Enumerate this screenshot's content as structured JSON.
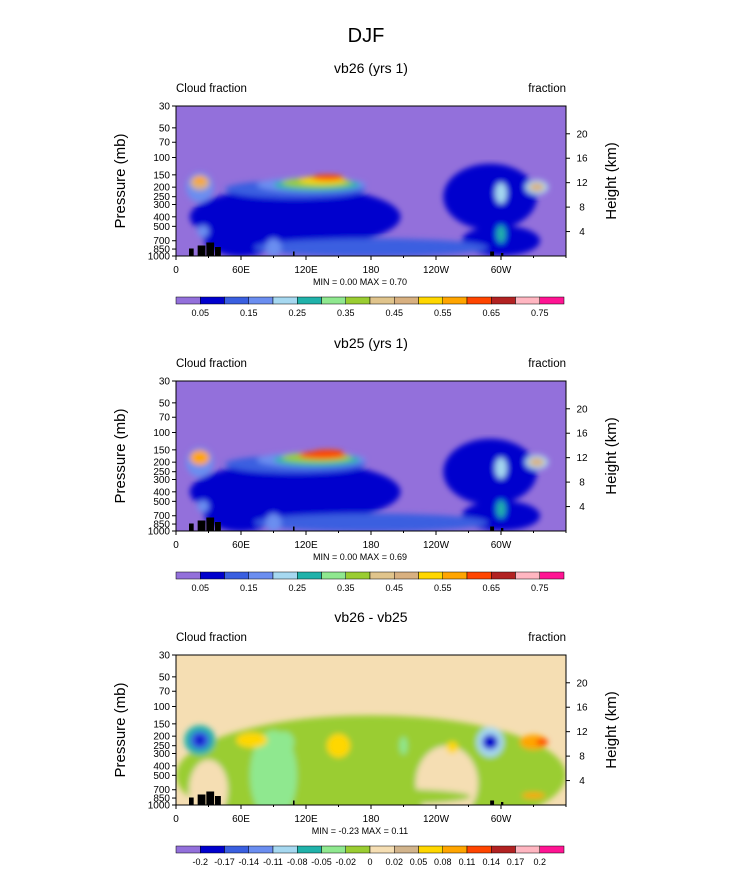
{
  "figure": {
    "title": "DJF"
  },
  "chart_data": [
    {
      "type": "heatmap",
      "title": "vb26 (yrs 1)",
      "left_label": "Cloud fraction",
      "right_label": "fraction",
      "ylabel": "Pressure (mb)",
      "y2label": "Height (km)",
      "x_ticks": [
        "0",
        "60E",
        "120E",
        "180",
        "120W",
        "60W"
      ],
      "y_ticks": [
        "30",
        "50",
        "70",
        "100",
        "150",
        "200",
        "250",
        "300",
        "400",
        "500",
        "700",
        "850",
        "1000"
      ],
      "y2_ticks": [
        "20",
        "16",
        "12",
        "8",
        "4"
      ],
      "stats_text": "MIN =   0.00  MAX =   0.70",
      "min": 0.0,
      "max": 0.7,
      "levels": [
        0.05,
        0.1,
        0.15,
        0.2,
        0.25,
        0.3,
        0.35,
        0.4,
        0.45,
        0.5,
        0.55,
        0.6,
        0.65,
        0.7,
        0.75
      ],
      "colorbar_labels": [
        "0.05",
        "0.15",
        "0.25",
        "0.35",
        "0.45",
        "0.55",
        "0.65",
        "0.75"
      ]
    },
    {
      "type": "heatmap",
      "title": "vb25 (yrs 1)",
      "left_label": "Cloud fraction",
      "right_label": "fraction",
      "ylabel": "Pressure (mb)",
      "y2label": "Height (km)",
      "x_ticks": [
        "0",
        "60E",
        "120E",
        "180",
        "120W",
        "60W"
      ],
      "y_ticks": [
        "30",
        "50",
        "70",
        "100",
        "150",
        "200",
        "250",
        "300",
        "400",
        "500",
        "700",
        "850",
        "1000"
      ],
      "y2_ticks": [
        "20",
        "16",
        "12",
        "8",
        "4"
      ],
      "stats_text": "MIN =   0.00  MAX =   0.69",
      "min": 0.0,
      "max": 0.69,
      "levels": [
        0.05,
        0.1,
        0.15,
        0.2,
        0.25,
        0.3,
        0.35,
        0.4,
        0.45,
        0.5,
        0.55,
        0.6,
        0.65,
        0.7,
        0.75
      ],
      "colorbar_labels": [
        "0.05",
        "0.15",
        "0.25",
        "0.35",
        "0.45",
        "0.55",
        "0.65",
        "0.75"
      ]
    },
    {
      "type": "heatmap",
      "title": "vb26 - vb25",
      "left_label": "Cloud fraction",
      "right_label": "fraction",
      "ylabel": "Pressure (mb)",
      "y2label": "Height (km)",
      "x_ticks": [
        "0",
        "60E",
        "120E",
        "180",
        "120W",
        "60W"
      ],
      "y_ticks": [
        "30",
        "50",
        "70",
        "100",
        "150",
        "200",
        "250",
        "300",
        "400",
        "500",
        "700",
        "850",
        "1000"
      ],
      "y2_ticks": [
        "20",
        "16",
        "12",
        "8",
        "4"
      ],
      "stats_text": "MIN =  -0.23  MAX =   0.11",
      "min": -0.23,
      "max": 0.11,
      "levels": [
        -0.2,
        -0.17,
        -0.14,
        -0.11,
        -0.08,
        -0.05,
        -0.02,
        0,
        0.02,
        0.05,
        0.08,
        0.11,
        0.14,
        0.17,
        0.2
      ],
      "colorbar_labels": [
        "-0.2",
        "-0.17",
        "-0.14",
        "-0.11",
        "-0.08",
        "-0.05",
        "-0.02",
        "0",
        "0.02",
        "0.05",
        "0.08",
        "0.11",
        "0.14",
        "0.17",
        "0.2"
      ]
    }
  ],
  "colors": {
    "abs_palette": [
      "#9370db",
      "#0000cd",
      "#3a5fe0",
      "#6b8ef0",
      "#a6d8f0",
      "#20b2aa",
      "#8fe88f",
      "#9acd32",
      "#e0c48c",
      "#d8b080",
      "#ffd700",
      "#ffa500",
      "#ff4500",
      "#b22222",
      "#ffb6c1",
      "#ff1493"
    ],
    "diff_palette": [
      "#9370db",
      "#0000cd",
      "#3a5fe0",
      "#6b8ef0",
      "#a6d8f0",
      "#20b2aa",
      "#8fe88f",
      "#9acd32",
      "#f5deb3",
      "#d2b48c",
      "#ffd700",
      "#ffa500",
      "#ff4500",
      "#b22222",
      "#ffb6c1",
      "#ff1493"
    ],
    "land": "#000000"
  }
}
